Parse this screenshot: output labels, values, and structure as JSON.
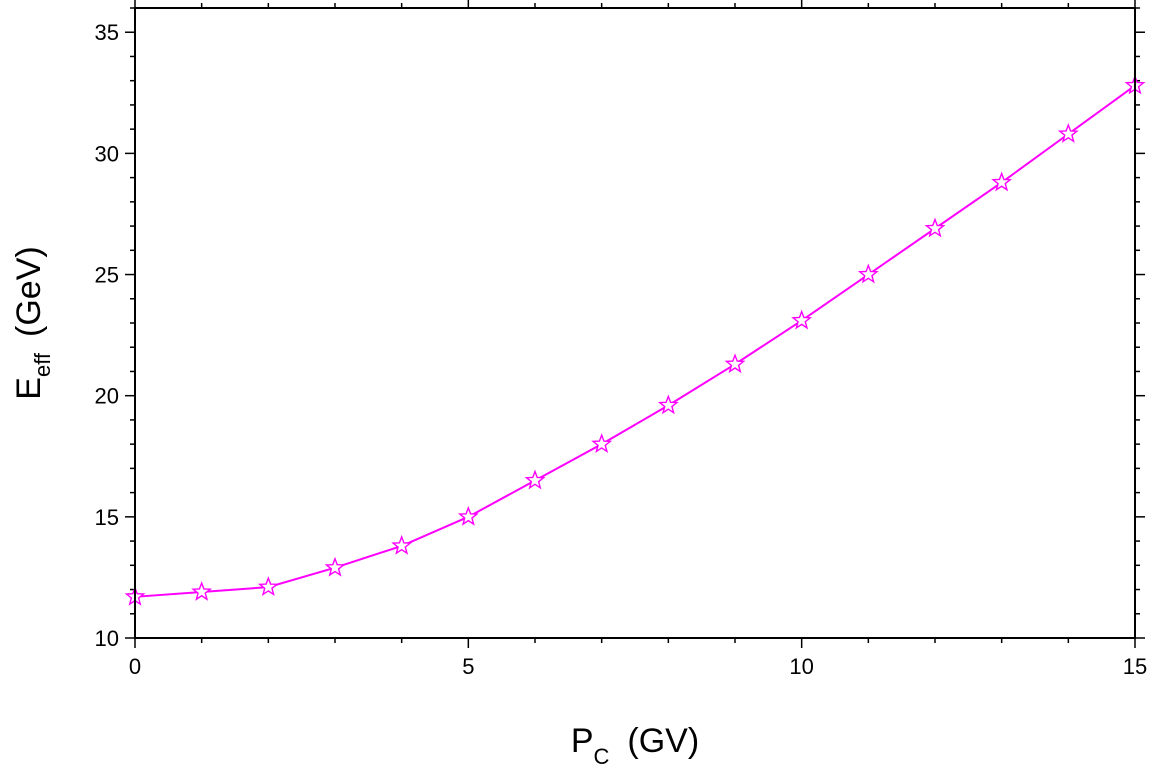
{
  "chart_data": {
    "type": "line",
    "title": "",
    "xlabel": {
      "main": "P",
      "sub": "C",
      "unit": "(GV)"
    },
    "ylabel": {
      "main": "E",
      "sub": "eff",
      "unit": "(GeV)"
    },
    "xlim": [
      0,
      15
    ],
    "ylim": [
      10,
      36
    ],
    "xticks": [
      0,
      5,
      10,
      15
    ],
    "yticks": [
      10,
      15,
      20,
      25,
      30,
      35
    ],
    "x_minor_step": 1,
    "y_minor_step": 1,
    "grid": false,
    "legend": "none",
    "series": [
      {
        "color": "#ff00ff",
        "marker": "star-open",
        "x": [
          0,
          1,
          2,
          3,
          4,
          5,
          6,
          7,
          8,
          9,
          10,
          11,
          12,
          13,
          14,
          15
        ],
        "y": [
          11.7,
          11.9,
          12.1,
          12.9,
          13.8,
          15.0,
          16.5,
          18.0,
          19.6,
          21.3,
          23.1,
          25.0,
          26.9,
          28.8,
          30.8,
          32.8
        ]
      }
    ]
  }
}
